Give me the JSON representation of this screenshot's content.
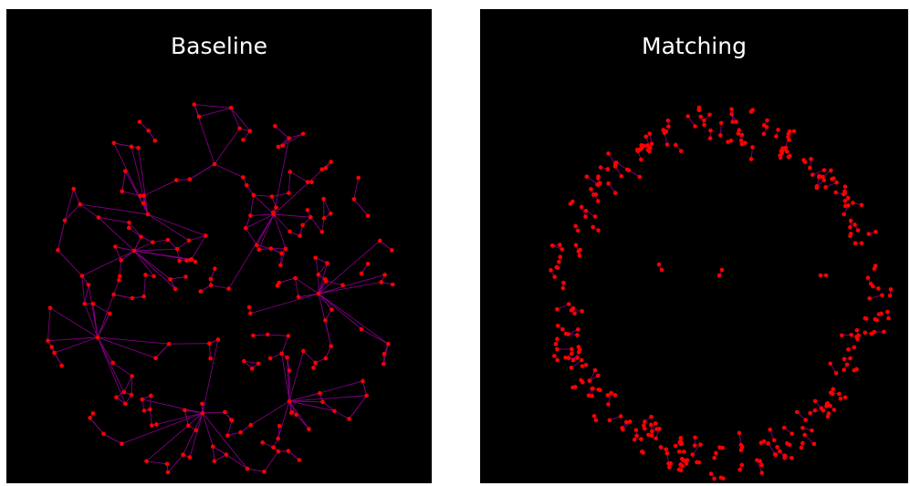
{
  "panels": [
    {
      "title": "Baseline"
    },
    {
      "title": "Matching"
    }
  ],
  "colors": {
    "background": "#000000",
    "node": "#ff0000",
    "edge": "#800080",
    "title": "#ffffff"
  }
}
